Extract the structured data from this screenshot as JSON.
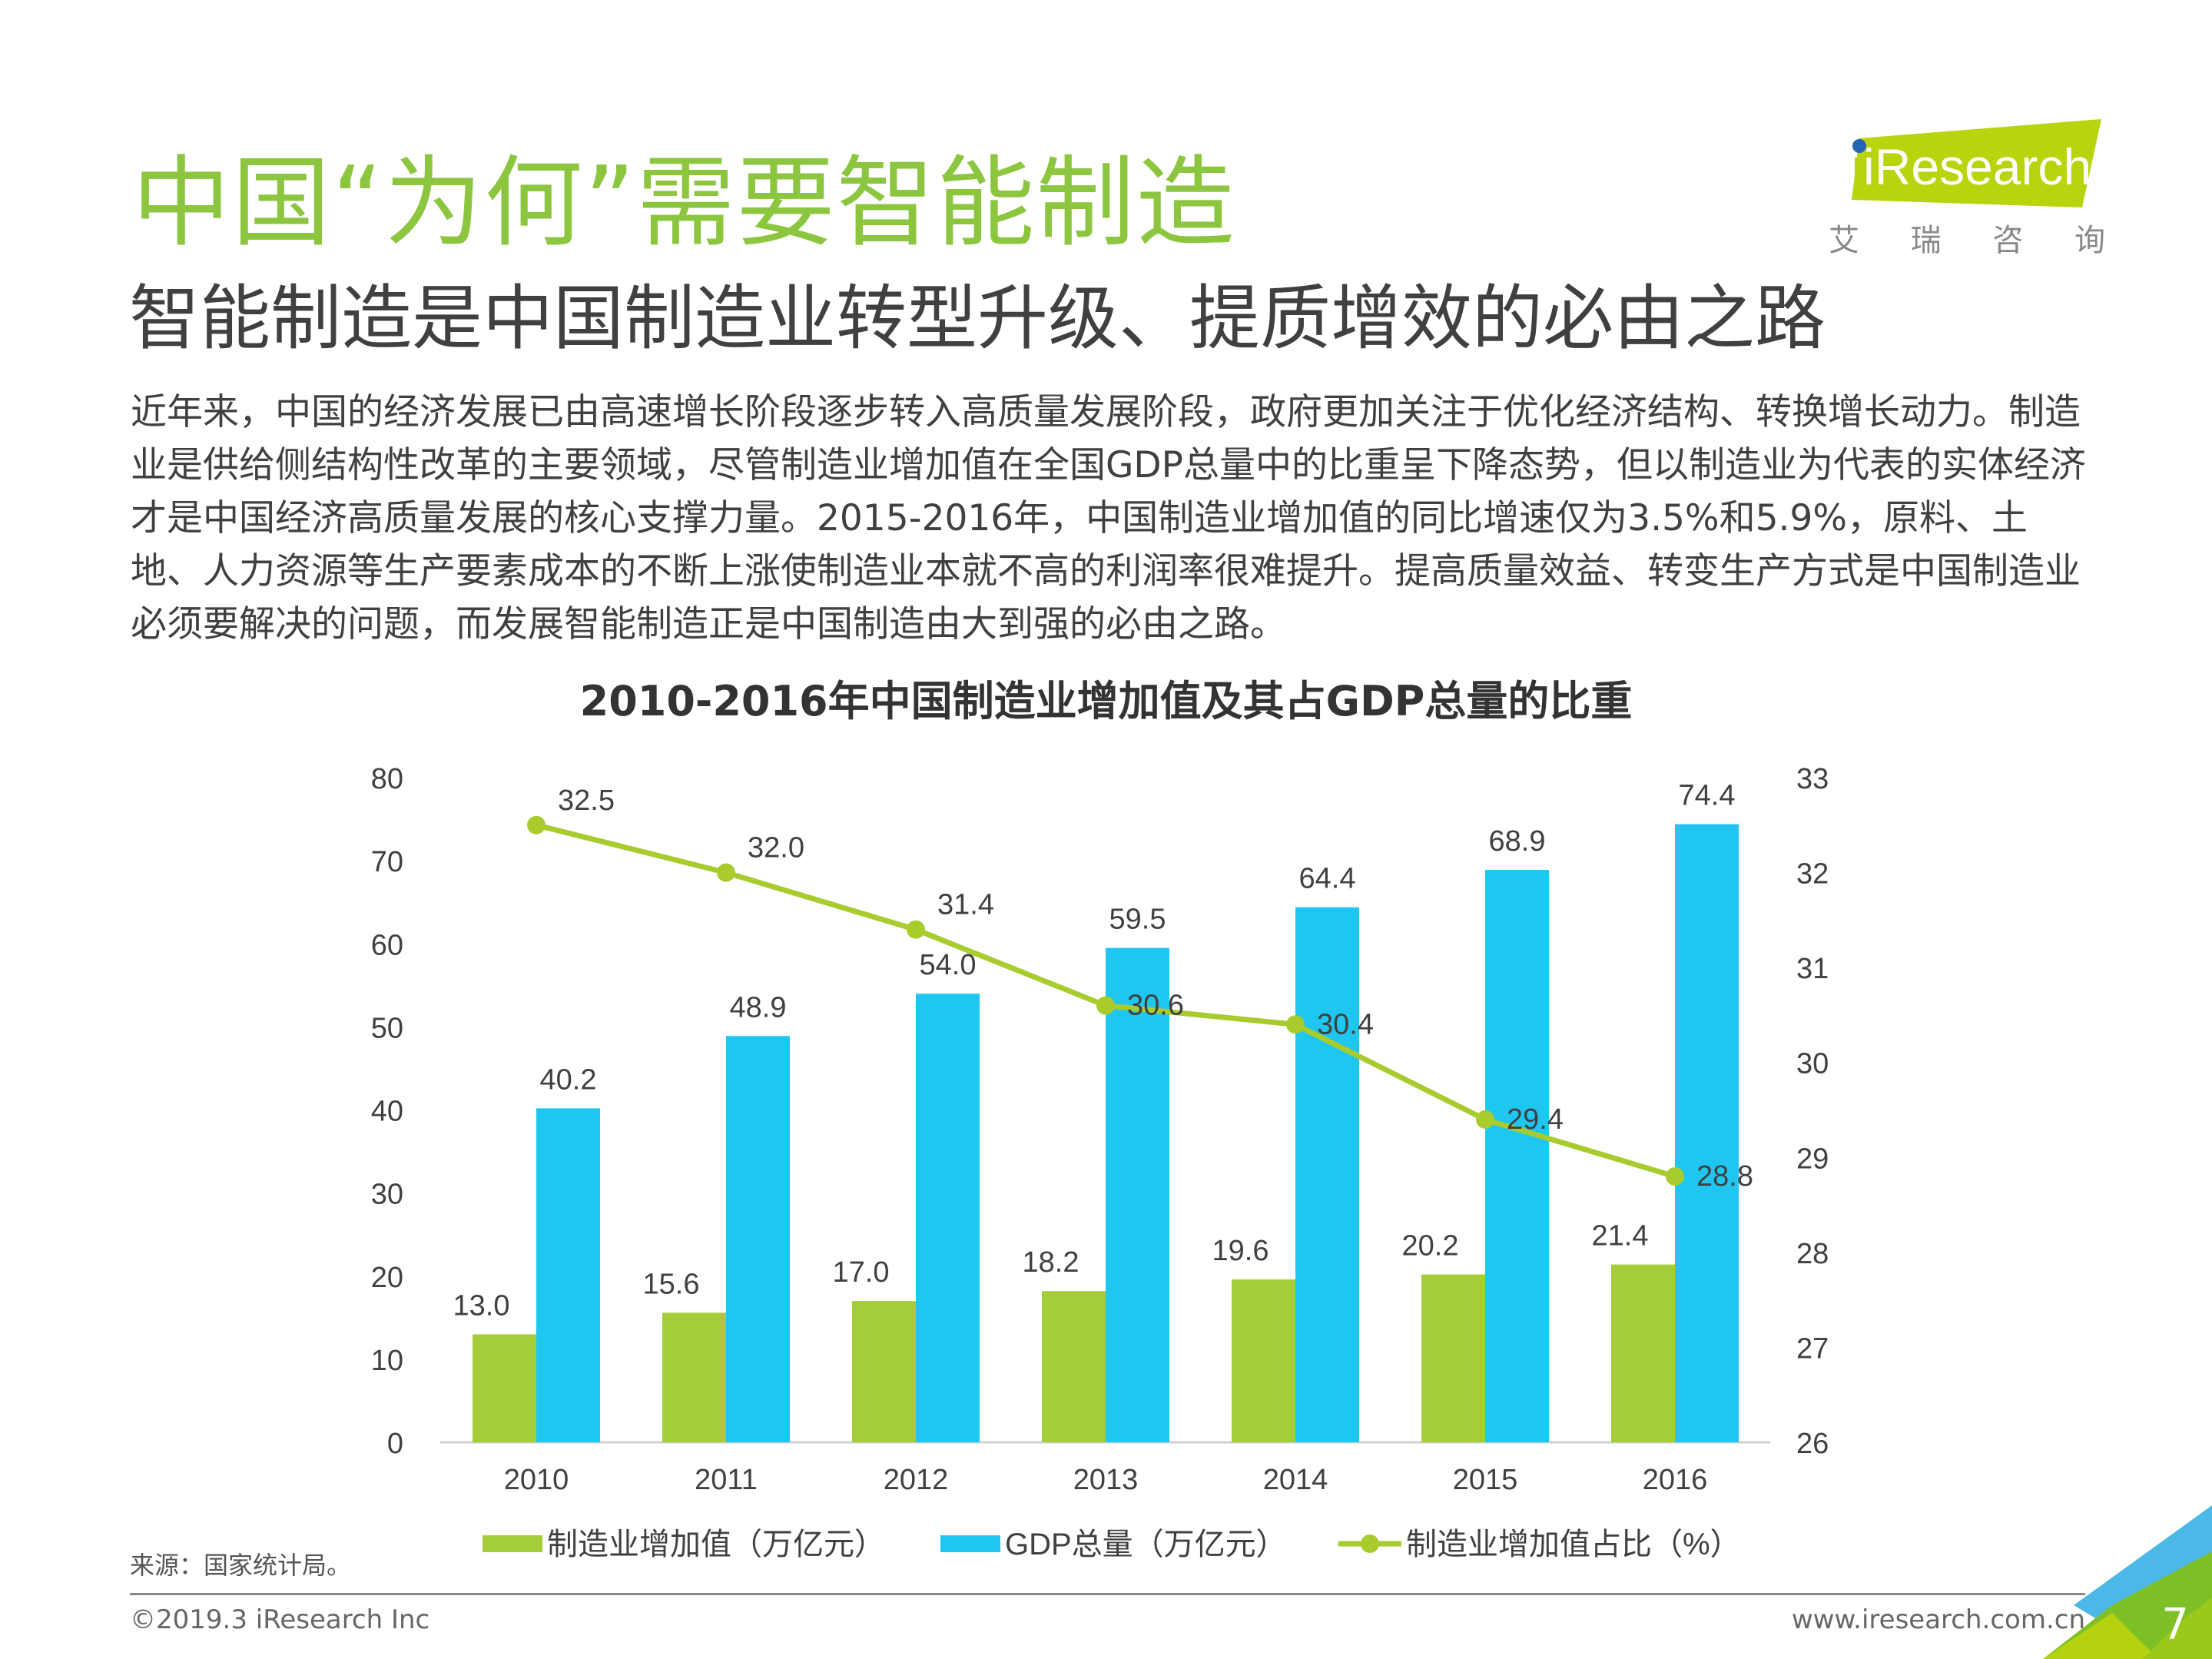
{
  "header": {
    "title": "中国“为何”需要智能制造",
    "subtitle": "智能制造是中国制造业转型升级、提质增效的必由之路",
    "logo_text": "iResearch",
    "logo_cn": [
      "艾",
      "瑞",
      "咨",
      "询"
    ]
  },
  "body_text": "近年来，中国的经济发展已由高速增长阶段逐步转入高质量发展阶段，政府更加关注于优化经济结构、转换增长动力。制造业是供给侧结构性改革的主要领域，尽管制造业增加值在全国GDP总量中的比重呈下降态势，但以制造业为代表的实体经济才是中国经济高质量发展的核心支撑力量。2015-2016年，中国制造业增加值的同比增速仅为3.5%和5.9%，原料、土地、人力资源等生产要素成本的不断上涨使制造业本就不高的利润率很难提升。提高质量效益、转变生产方式是中国制造业必须要解决的问题，而发展智能制造正是中国制造由大到强的必由之路。",
  "chart_data": {
    "type": "bar",
    "title": "2010-2016年中国制造业增加值及其占GDP总量的比重",
    "categories": [
      "2010",
      "2011",
      "2012",
      "2013",
      "2014",
      "2015",
      "2016"
    ],
    "series": [
      {
        "name": "制造业增加值（万亿元）",
        "type": "bar",
        "axis": "left",
        "color": "#a5cd39",
        "values": [
          13.0,
          15.6,
          17.0,
          18.2,
          19.6,
          20.2,
          21.4
        ]
      },
      {
        "name": "GDP总量（万亿元）",
        "type": "bar",
        "axis": "left",
        "color": "#1fc7f0",
        "values": [
          40.2,
          48.9,
          54.0,
          59.5,
          64.4,
          68.9,
          74.4
        ]
      },
      {
        "name": "制造业增加值占比（%）",
        "type": "line",
        "axis": "right",
        "color": "#a8cb2e",
        "values": [
          32.5,
          32.0,
          31.4,
          30.6,
          30.4,
          29.4,
          28.8
        ]
      }
    ],
    "y_left": {
      "range": [
        0,
        80
      ],
      "ticks": [
        "0",
        "10",
        "20",
        "30",
        "40",
        "50",
        "60",
        "70",
        "80"
      ]
    },
    "y_right": {
      "range": [
        26,
        33
      ],
      "ticks": [
        "26",
        "27",
        "28",
        "29",
        "30",
        "31",
        "32",
        "33"
      ]
    },
    "grid": false,
    "legend": "bottom"
  },
  "source": "来源：国家统计局。",
  "footer": {
    "copyright": "©2019.3 iResearch Inc",
    "website": "www.iresearch.com.cn",
    "page_number": "7"
  }
}
